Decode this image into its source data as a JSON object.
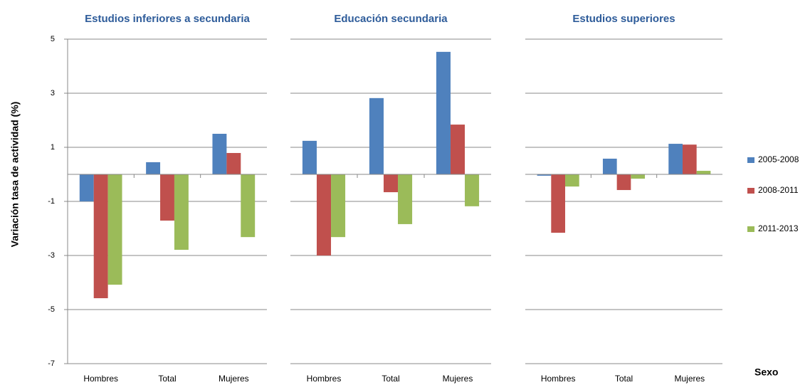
{
  "chart_data": [
    {
      "type": "bar",
      "title": "Estudios inferiores a secundaria",
      "y_label": "Variación tasa de actividad (%)",
      "categories": [
        "Hombres",
        "Total",
        "Mujeres"
      ],
      "series": [
        {
          "name": "2005-2008",
          "color": "#4f81bd",
          "values": [
            -1.0,
            0.45,
            1.5
          ]
        },
        {
          "name": "2008-2011",
          "color": "#c0504d",
          "values": [
            -4.58,
            -1.71,
            0.79
          ]
        },
        {
          "name": "2011-2013",
          "color": "#9bbb59",
          "values": [
            -4.08,
            -2.79,
            -2.32
          ]
        }
      ],
      "ylim": [
        -7,
        5
      ],
      "yticks": [
        5,
        3,
        1,
        -1,
        -3,
        -5,
        -7
      ],
      "grid": true
    },
    {
      "type": "bar",
      "title": "Educación secundaria",
      "categories": [
        "Hombres",
        "Total",
        "Mujeres"
      ],
      "series": [
        {
          "name": "2005-2008",
          "color": "#4f81bd",
          "values": [
            1.24,
            2.82,
            4.53
          ]
        },
        {
          "name": "2008-2011",
          "color": "#c0504d",
          "values": [
            -3.0,
            -0.66,
            1.84
          ]
        },
        {
          "name": "2011-2013",
          "color": "#9bbb59",
          "values": [
            -2.32,
            -1.84,
            -1.18
          ]
        }
      ],
      "ylim": [
        -7,
        5
      ],
      "yticks": [
        5,
        3,
        1,
        -1,
        -3,
        -5,
        -7
      ],
      "grid": true
    },
    {
      "type": "bar",
      "title": "Estudios superiores",
      "x_label": "Sexo",
      "categories": [
        "Hombres",
        "Total",
        "Mujeres"
      ],
      "series": [
        {
          "name": "2005-2008",
          "color": "#4f81bd",
          "values": [
            -0.05,
            0.58,
            1.13
          ]
        },
        {
          "name": "2008-2011",
          "color": "#c0504d",
          "values": [
            -2.16,
            -0.58,
            1.1
          ]
        },
        {
          "name": "2011-2013",
          "color": "#9bbb59",
          "values": [
            -0.45,
            -0.16,
            0.13
          ]
        }
      ],
      "ylim": [
        -7,
        5
      ],
      "yticks": [
        5,
        3,
        1,
        -1,
        -3,
        -5,
        -7
      ],
      "grid": true
    }
  ]
}
